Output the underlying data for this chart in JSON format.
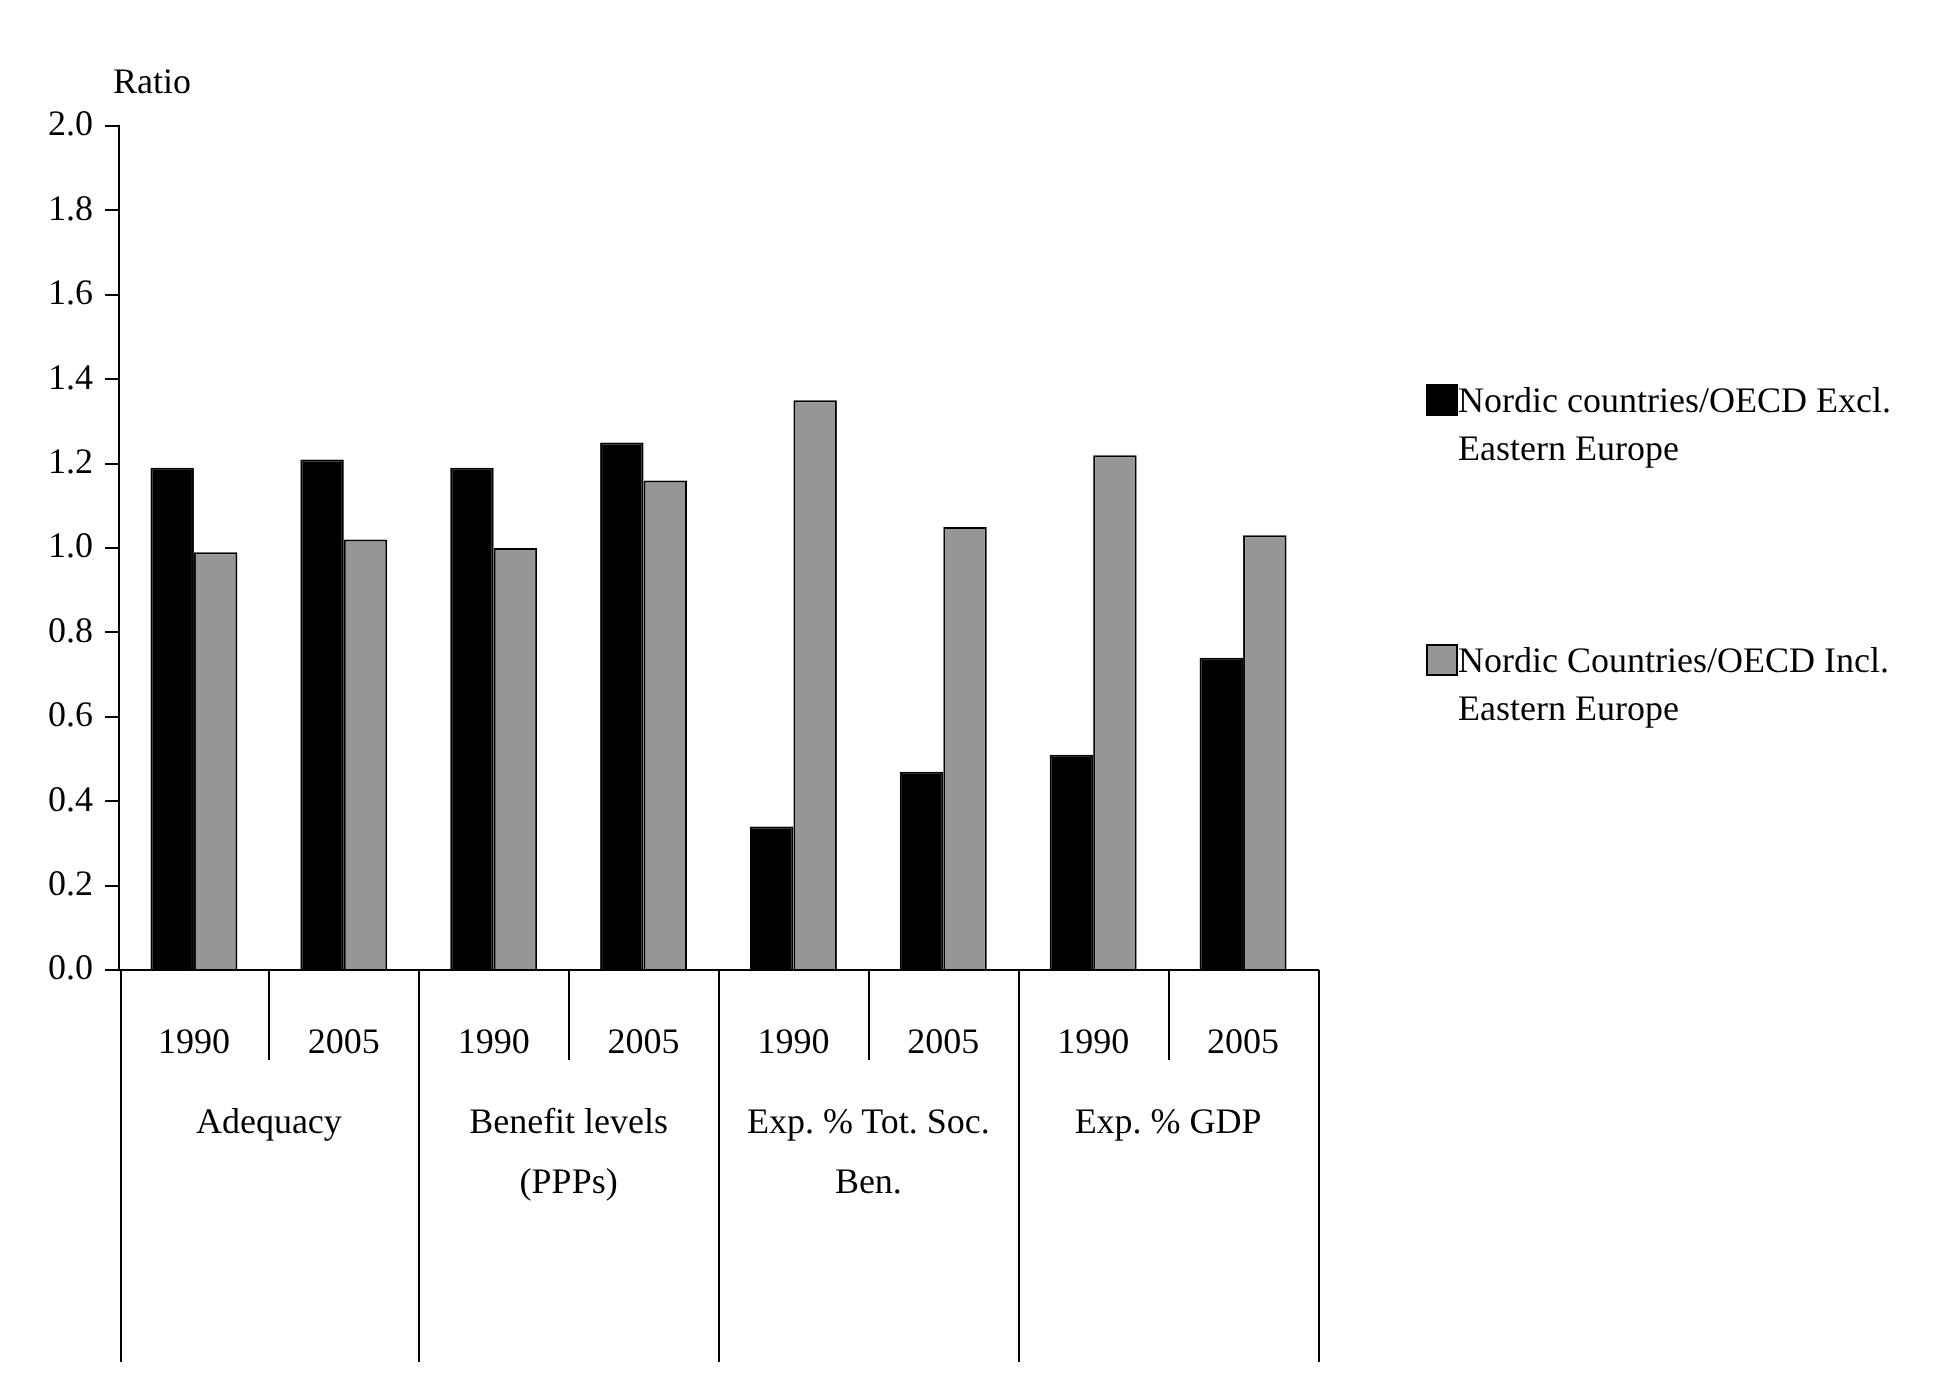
{
  "chart_data": {
    "type": "bar",
    "ylabel": "Ratio",
    "categories": [
      "1990",
      "2005",
      "1990",
      "2005",
      "1990",
      "2005",
      "1990",
      "2005"
    ],
    "annotations": [
      "Adequacy",
      "Benefit levels (PPPs)",
      "Exp. % Tot. Soc. Ben.",
      "Exp. % GDP"
    ],
    "series": [
      {
        "name": "Nordic countries/OECD Excl. Eastern Europe",
        "color": "#000000",
        "values": [
          1.19,
          1.21,
          1.19,
          1.25,
          0.34,
          0.47,
          0.51,
          0.74
        ]
      },
      {
        "name": "Nordic Countries/OECD Incl. Eastern Europe",
        "color": "#969696",
        "values": [
          0.99,
          1.02,
          1.0,
          1.16,
          1.35,
          1.05,
          1.22,
          1.03
        ]
      }
    ],
    "ylim": [
      0,
      2
    ],
    "yticks": [
      {
        "value": 0,
        "label": "0.0"
      },
      {
        "value": 0.2,
        "label": "0.2"
      },
      {
        "value": 0.4,
        "label": "0.4"
      },
      {
        "value": 0.6,
        "label": "0.6"
      },
      {
        "value": 0.8,
        "label": "0.8"
      },
      {
        "value": 1,
        "label": "1.0"
      },
      {
        "value": 1.2,
        "label": "1.2"
      },
      {
        "value": 1.4,
        "label": "1.4"
      },
      {
        "value": 1.6,
        "label": "1.6"
      },
      {
        "value": 1.8,
        "label": "1.8"
      },
      {
        "value": 2,
        "label": "2.0"
      }
    ],
    "grid": false,
    "legend": "right"
  }
}
